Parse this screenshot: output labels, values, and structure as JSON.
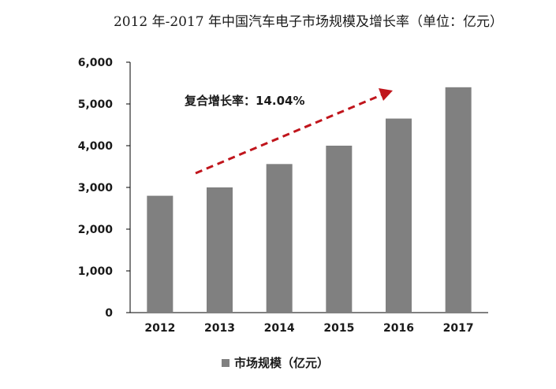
{
  "chart_data": {
    "type": "bar",
    "title": "2012 年-2017 年中国汽车电子市场规模及增长率（单位：亿元）",
    "categories": [
      "2012",
      "2013",
      "2014",
      "2015",
      "2016",
      "2017"
    ],
    "series": [
      {
        "name": "市场规模（亿元）",
        "values": [
          2800,
          3000,
          3560,
          4000,
          4650,
          5400
        ]
      }
    ],
    "y_ticks": [
      "0",
      "1,000",
      "2,000",
      "3,000",
      "4,000",
      "5,000",
      "6,000"
    ],
    "ylim": [
      0,
      6000
    ],
    "xlabel": "",
    "ylabel": "",
    "grid": false,
    "legend_position": "bottom",
    "annotation": "复合增长率：14.04%",
    "bar_color": "#808080",
    "arrow_color": "#c0151c",
    "axis_color": "#000000"
  }
}
